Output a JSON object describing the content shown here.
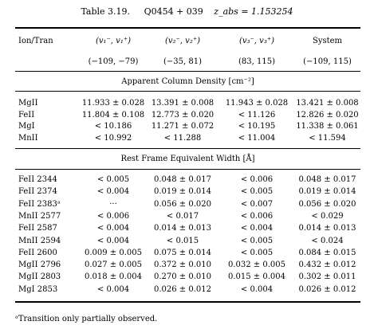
{
  "caption": {
    "label": "Table 3.19.",
    "object": "Q0454 + 039",
    "redshift": "z_abs = 1.153254"
  },
  "header": {
    "columns": [
      "Ion/Tran",
      "(v₁⁻, v₁⁺)",
      "(v₂⁻, v₂⁺)",
      "(v₃⁻, v₃⁺)",
      "System"
    ]
  },
  "ranges": [
    "",
    "(−109, −79)",
    "(−35, 81)",
    "(83, 115)",
    "(−109, 115)"
  ],
  "section_column_density": {
    "title": "Apparent Column Density [cm⁻²]",
    "rows": [
      [
        "MgII",
        "11.933 ± 0.028",
        "13.391 ± 0.008",
        "11.943 ± 0.028",
        "13.421 ± 0.008"
      ],
      [
        "FeII",
        "11.804 ± 0.108",
        "12.773 ± 0.020",
        "< 11.126",
        "12.826 ± 0.020"
      ],
      [
        "MgI",
        "< 10.186",
        "11.271 ± 0.072",
        "< 10.195",
        "11.338 ± 0.061"
      ],
      [
        "MnII",
        "< 10.992",
        "< 11.288",
        "< 11.004",
        "< 11.594"
      ]
    ]
  },
  "section_equiv_width": {
    "title": "Rest Frame Equivalent Width [Å]",
    "rows": [
      [
        "FeII 2344",
        "< 0.005",
        "0.048 ± 0.017",
        "< 0.006",
        "0.048 ± 0.017"
      ],
      [
        "FeII 2374",
        "< 0.004",
        "0.019 ± 0.014",
        "< 0.005",
        "0.019 ± 0.014"
      ],
      [
        "FeII 2383ᵃ",
        "···",
        "0.056 ± 0.020",
        "< 0.007",
        "0.056 ± 0.020"
      ],
      [
        "MnII 2577",
        "< 0.006",
        "< 0.017",
        "< 0.006",
        "< 0.029"
      ],
      [
        "FeII 2587",
        "< 0.004",
        "0.014 ± 0.013",
        "< 0.004",
        "0.014 ± 0.013"
      ],
      [
        "MnII 2594",
        "< 0.004",
        "< 0.015",
        "< 0.005",
        "< 0.024"
      ],
      [
        "FeII 2600",
        "0.009 ± 0.005",
        "0.075 ± 0.014",
        "< 0.005",
        "0.084 ± 0.015"
      ],
      [
        "MgII 2796",
        "0.027 ± 0.005",
        "0.372 ± 0.010",
        "0.032 ± 0.005",
        "0.432 ± 0.012"
      ],
      [
        "MgII 2803",
        "0.018 ± 0.004",
        "0.270 ± 0.010",
        "0.015 ± 0.004",
        "0.302 ± 0.011"
      ],
      [
        "MgI 2853",
        "< 0.004",
        "0.026 ± 0.012",
        "< 0.004",
        "0.026 ± 0.012"
      ]
    ]
  },
  "footnote": "ᵃTransition only partially observed."
}
